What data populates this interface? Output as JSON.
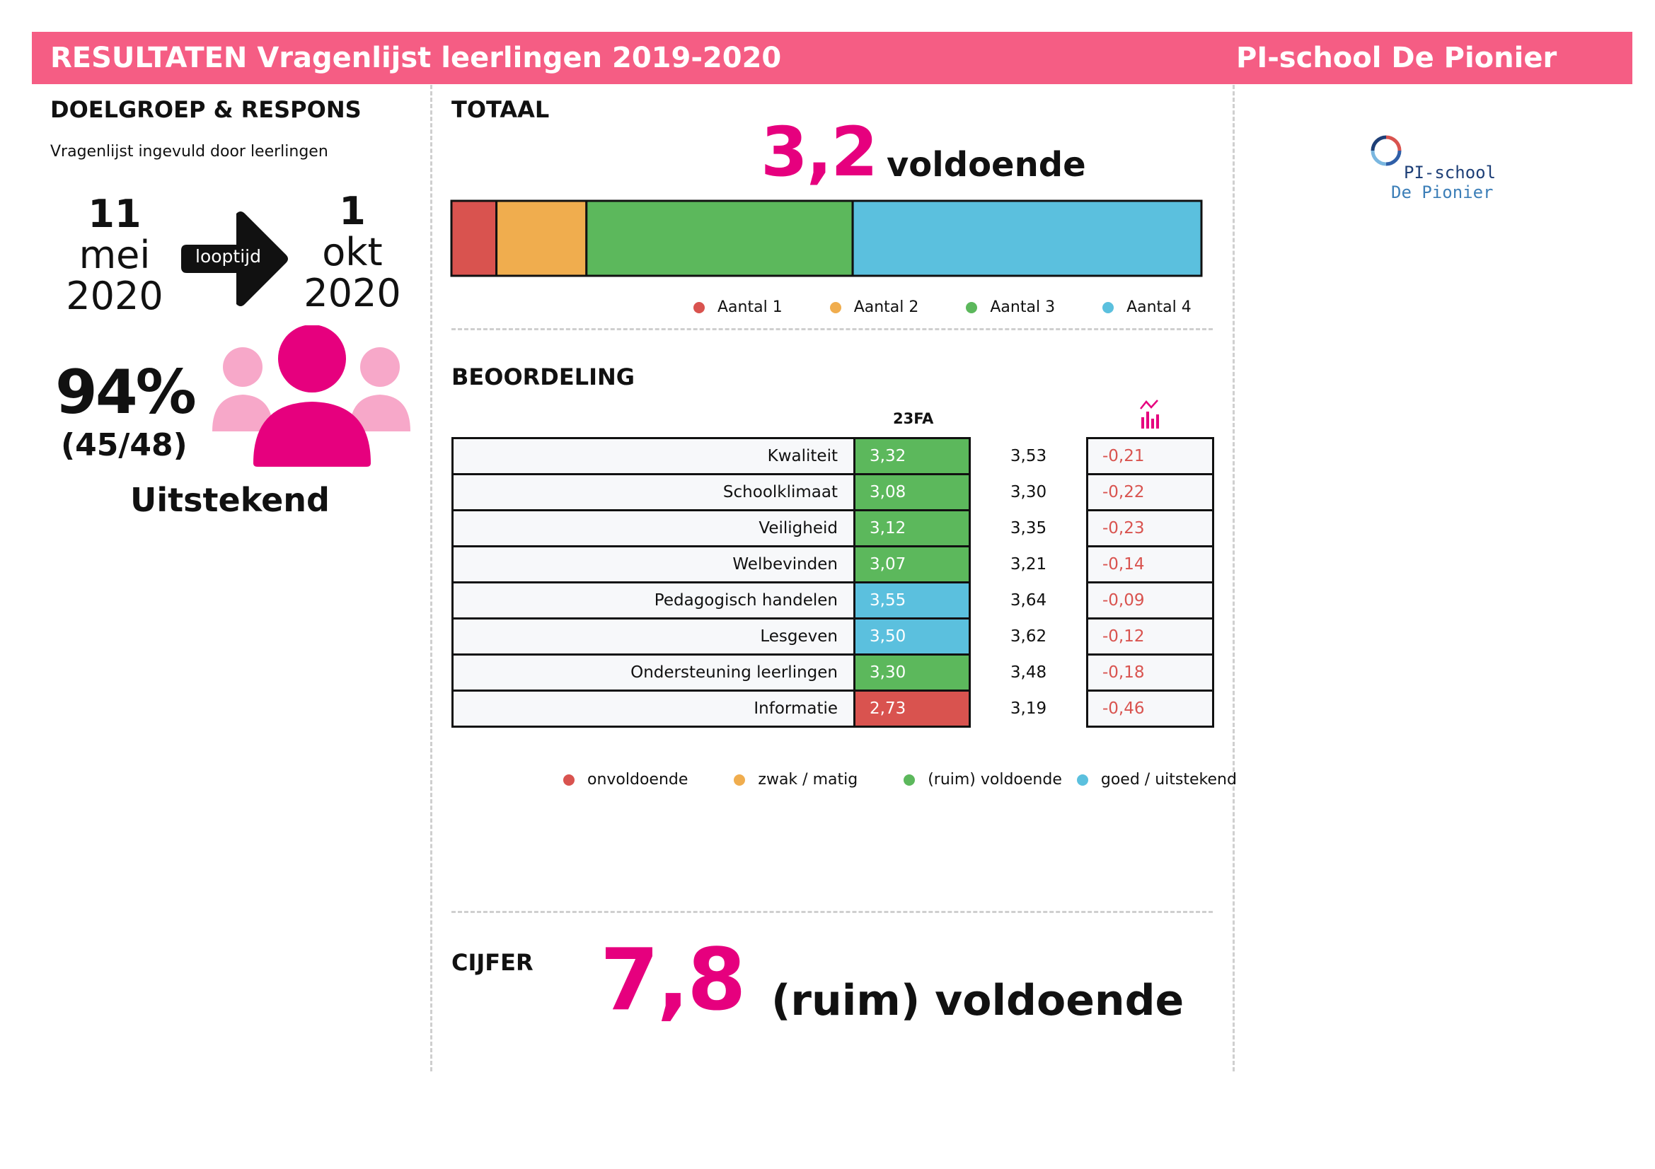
{
  "header": {
    "title": "RESULTATEN Vragenlijst leerlingen 2019-2020",
    "school": "PI-school De Pionier"
  },
  "doelgroep": {
    "heading": "DOELGROEP & RESPONS",
    "subtitle": "Vragenlijst ingevuld door leerlingen",
    "start": {
      "day": "11",
      "month": "mei",
      "year": "2020"
    },
    "looptijd_label": "looptijd",
    "end": {
      "day": "1",
      "month": "okt",
      "year": "2020"
    },
    "response_pct": "94%",
    "response_count": "(45/48)",
    "response_rating": "Uitstekend"
  },
  "totaal": {
    "heading": "TOTAAL",
    "score": "3,2",
    "score_label": "voldoende",
    "legend": [
      "Aantal 1",
      "Aantal 2",
      "Aantal 3",
      "Aantal 4"
    ]
  },
  "chart_data": {
    "type": "bar",
    "orientation": "horizontal-stacked-100",
    "categories": [
      "Aantal 1",
      "Aantal 2",
      "Aantal 3",
      "Aantal 4"
    ],
    "values": [
      6,
      12,
      35.5,
      46.5
    ],
    "colors": [
      "#d9534f",
      "#f0ad4e",
      "#5cb85c",
      "#5bc0de"
    ],
    "legend_position": "bottom"
  },
  "beoordeling": {
    "heading": "BEOORDELING",
    "col_header": "23FA",
    "trend_icon": "bar-chart-trend-icon",
    "rows": [
      {
        "label": "Kwaliteit",
        "value": "3,32",
        "ref": "3,53",
        "diff": "-0,21",
        "level": "green"
      },
      {
        "label": "Schoolklimaat",
        "value": "3,08",
        "ref": "3,30",
        "diff": "-0,22",
        "level": "green"
      },
      {
        "label": "Veiligheid",
        "value": "3,12",
        "ref": "3,35",
        "diff": "-0,23",
        "level": "green"
      },
      {
        "label": "Welbevinden",
        "value": "3,07",
        "ref": "3,21",
        "diff": "-0,14",
        "level": "green"
      },
      {
        "label": "Pedagogisch handelen",
        "value": "3,55",
        "ref": "3,64",
        "diff": "-0,09",
        "level": "blue"
      },
      {
        "label": "Lesgeven",
        "value": "3,50",
        "ref": "3,62",
        "diff": "-0,12",
        "level": "blue"
      },
      {
        "label": "Ondersteuning leerlingen",
        "value": "3,30",
        "ref": "3,48",
        "diff": "-0,18",
        "level": "green"
      },
      {
        "label": "Informatie",
        "value": "2,73",
        "ref": "3,19",
        "diff": "-0,46",
        "level": "red"
      }
    ],
    "level_colors": {
      "red": "#d9534f",
      "orange": "#f0ad4e",
      "green": "#5cb85c",
      "blue": "#5bc0de"
    },
    "legend": [
      "onvoldoende",
      "zwak / matig",
      "(ruim) voldoende",
      "goed / uitstekend"
    ]
  },
  "cijfer": {
    "heading": "CIJFER",
    "score": "7,8",
    "score_label": "(ruim) voldoende"
  },
  "logo": {
    "line1": "PI-school",
    "line2": "De Pionier"
  },
  "colors": {
    "accent": "#e6007e",
    "header": "#f55d84",
    "light_pink": "#f7a8c9"
  }
}
